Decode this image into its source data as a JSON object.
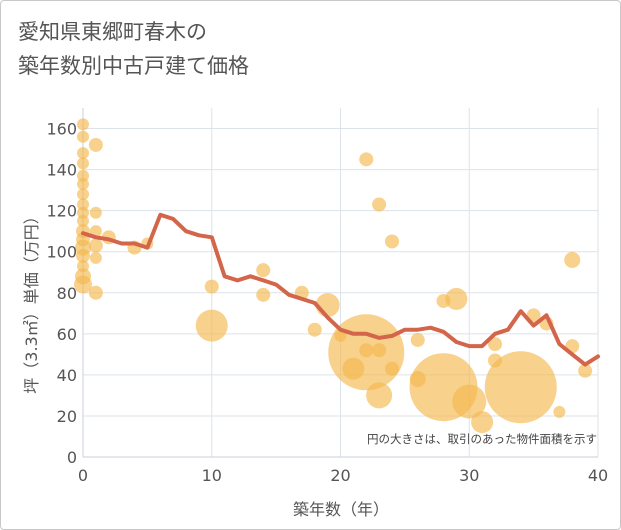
{
  "chart_data": {
    "type": "scatter",
    "title_lines": [
      "愛知県東郷町春木の",
      "築年数別中古戸建て価格"
    ],
    "xlabel": "築年数（年）",
    "ylabel": "坪（3.3㎡）単価（万円）",
    "xlim": [
      0,
      40
    ],
    "ylim": [
      0,
      170
    ],
    "xticks": [
      0,
      10,
      20,
      30,
      40
    ],
    "yticks": [
      0,
      20,
      40,
      60,
      80,
      100,
      120,
      140,
      160
    ],
    "grid": true,
    "annotation": "円の大きさは、取引のあった物件面積を示す",
    "colors": {
      "bubble": "#f5b84f",
      "line": "#d2654a",
      "grid": "#dce3ea",
      "text": "#555555"
    },
    "bubbles": [
      {
        "x": 0,
        "y": 162,
        "size": 6
      },
      {
        "x": 0,
        "y": 156,
        "size": 6
      },
      {
        "x": 0,
        "y": 148,
        "size": 6
      },
      {
        "x": 0,
        "y": 143,
        "size": 6
      },
      {
        "x": 0,
        "y": 137,
        "size": 6
      },
      {
        "x": 0,
        "y": 133,
        "size": 6
      },
      {
        "x": 0,
        "y": 128,
        "size": 6
      },
      {
        "x": 0,
        "y": 123,
        "size": 6
      },
      {
        "x": 0,
        "y": 119,
        "size": 6
      },
      {
        "x": 0,
        "y": 115,
        "size": 6
      },
      {
        "x": 0,
        "y": 110,
        "size": 7
      },
      {
        "x": 0,
        "y": 106,
        "size": 7
      },
      {
        "x": 0,
        "y": 102,
        "size": 8
      },
      {
        "x": 0,
        "y": 98,
        "size": 7
      },
      {
        "x": 0,
        "y": 93,
        "size": 6
      },
      {
        "x": 0,
        "y": 88,
        "size": 8
      },
      {
        "x": 0,
        "y": 84,
        "size": 9
      },
      {
        "x": 1,
        "y": 152,
        "size": 7
      },
      {
        "x": 1,
        "y": 119,
        "size": 6
      },
      {
        "x": 1,
        "y": 110,
        "size": 6
      },
      {
        "x": 1,
        "y": 103,
        "size": 7
      },
      {
        "x": 1,
        "y": 97,
        "size": 6
      },
      {
        "x": 1,
        "y": 80,
        "size": 7
      },
      {
        "x": 2,
        "y": 107,
        "size": 7
      },
      {
        "x": 4,
        "y": 102,
        "size": 7
      },
      {
        "x": 5,
        "y": 104,
        "size": 6
      },
      {
        "x": 10,
        "y": 83,
        "size": 7
      },
      {
        "x": 10,
        "y": 64,
        "size": 16
      },
      {
        "x": 14,
        "y": 91,
        "size": 7
      },
      {
        "x": 14,
        "y": 79,
        "size": 7
      },
      {
        "x": 17,
        "y": 80,
        "size": 7
      },
      {
        "x": 18,
        "y": 62,
        "size": 7
      },
      {
        "x": 19,
        "y": 74,
        "size": 12
      },
      {
        "x": 20,
        "y": 59,
        "size": 6
      },
      {
        "x": 21,
        "y": 43,
        "size": 11
      },
      {
        "x": 22,
        "y": 145,
        "size": 7
      },
      {
        "x": 22,
        "y": 51,
        "size": 38
      },
      {
        "x": 22,
        "y": 52,
        "size": 7
      },
      {
        "x": 23,
        "y": 123,
        "size": 7
      },
      {
        "x": 23,
        "y": 52,
        "size": 7
      },
      {
        "x": 23,
        "y": 30,
        "size": 13
      },
      {
        "x": 24,
        "y": 105,
        "size": 7
      },
      {
        "x": 24,
        "y": 43,
        "size": 7
      },
      {
        "x": 26,
        "y": 57,
        "size": 7
      },
      {
        "x": 26,
        "y": 38,
        "size": 8
      },
      {
        "x": 28,
        "y": 34,
        "size": 34
      },
      {
        "x": 28,
        "y": 76,
        "size": 7
      },
      {
        "x": 29,
        "y": 77,
        "size": 11
      },
      {
        "x": 30,
        "y": 27,
        "size": 17
      },
      {
        "x": 31,
        "y": 17,
        "size": 11
      },
      {
        "x": 32,
        "y": 55,
        "size": 7
      },
      {
        "x": 32,
        "y": 47,
        "size": 7
      },
      {
        "x": 34,
        "y": 34,
        "size": 36
      },
      {
        "x": 35,
        "y": 69,
        "size": 7
      },
      {
        "x": 36,
        "y": 65,
        "size": 7
      },
      {
        "x": 37,
        "y": 22,
        "size": 6
      },
      {
        "x": 38,
        "y": 96,
        "size": 8
      },
      {
        "x": 38,
        "y": 54,
        "size": 7
      },
      {
        "x": 39,
        "y": 42,
        "size": 7
      }
    ],
    "line": {
      "x": [
        0,
        1,
        2,
        3,
        4,
        5,
        6,
        7,
        8,
        9,
        10,
        11,
        12,
        13,
        14,
        15,
        16,
        17,
        18,
        19,
        20,
        21,
        22,
        23,
        24,
        25,
        26,
        27,
        28,
        29,
        30,
        31,
        32,
        33,
        34,
        35,
        36,
        37,
        38,
        39,
        40
      ],
      "y": [
        109,
        107,
        106,
        104,
        104,
        102,
        118,
        116,
        110,
        108,
        107,
        88,
        86,
        88,
        86,
        84,
        79,
        77,
        75,
        68,
        62,
        60,
        60,
        58,
        59,
        62,
        62,
        63,
        61,
        56,
        54,
        54,
        60,
        62,
        71,
        64,
        69,
        55,
        50,
        45,
        49
      ]
    }
  }
}
